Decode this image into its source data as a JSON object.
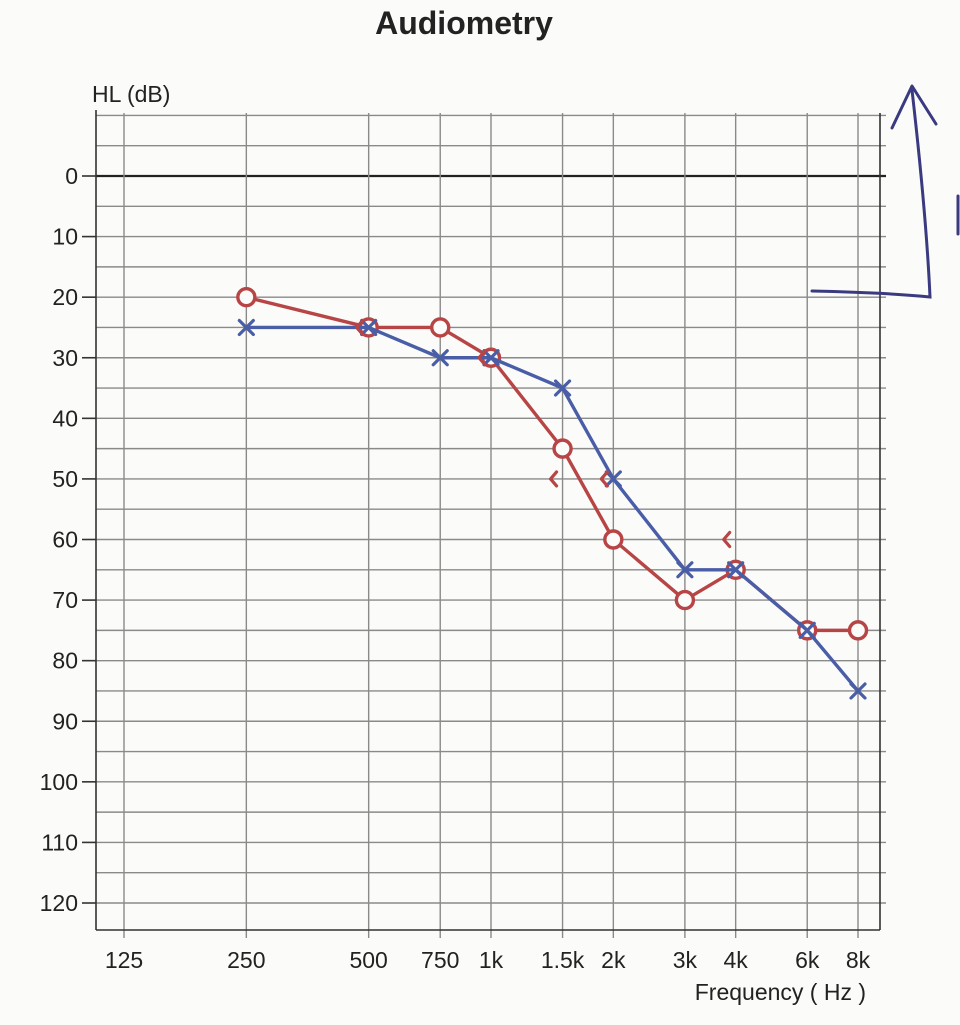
{
  "chart_data": {
    "type": "line",
    "title": "Audiometry",
    "ylabel": "HL (dB)",
    "xlabel": "Frequency ( Hz )",
    "x_scale": "log",
    "y_inverted": true,
    "ylim": [
      -10,
      125
    ],
    "y_ticks": [
      0,
      10,
      20,
      30,
      40,
      50,
      60,
      70,
      80,
      90,
      100,
      110,
      120
    ],
    "x_ticks": [
      {
        "value": 125,
        "label": "125"
      },
      {
        "value": 250,
        "label": "250"
      },
      {
        "value": 500,
        "label": "500"
      },
      {
        "value": 750,
        "label": "750"
      },
      {
        "value": 1000,
        "label": "1k"
      },
      {
        "value": 1500,
        "label": "1.5k"
      },
      {
        "value": 2000,
        "label": "2k"
      },
      {
        "value": 3000,
        "label": "3k"
      },
      {
        "value": 4000,
        "label": "4k"
      },
      {
        "value": 6000,
        "label": "6k"
      },
      {
        "value": 8000,
        "label": "8k"
      }
    ],
    "grid": true,
    "series": [
      {
        "marker": "circle",
        "color": "#b84545",
        "points": [
          {
            "x": 250,
            "y": 20
          },
          {
            "x": 500,
            "y": 25
          },
          {
            "x": 750,
            "y": 25
          },
          {
            "x": 1000,
            "y": 30
          },
          {
            "x": 1500,
            "y": 45
          },
          {
            "x": 2000,
            "y": 60
          },
          {
            "x": 3000,
            "y": 70
          },
          {
            "x": 4000,
            "y": 65
          },
          {
            "x": 6000,
            "y": 75
          },
          {
            "x": 8000,
            "y": 75
          }
        ]
      },
      {
        "marker": "cross",
        "color": "#4a5ea8",
        "points": [
          {
            "x": 250,
            "y": 25
          },
          {
            "x": 500,
            "y": 25
          },
          {
            "x": 750,
            "y": 30
          },
          {
            "x": 1000,
            "y": 30
          },
          {
            "x": 1500,
            "y": 35
          },
          {
            "x": 2000,
            "y": 50
          },
          {
            "x": 3000,
            "y": 65
          },
          {
            "x": 4000,
            "y": 65
          },
          {
            "x": 6000,
            "y": 75
          },
          {
            "x": 8000,
            "y": 85
          }
        ]
      },
      {
        "marker": "bracket-left",
        "color": "#b84545",
        "points": [
          {
            "x": 500,
            "y": 25
          },
          {
            "x": 1000,
            "y": 30
          },
          {
            "x": 1500,
            "y": 50
          },
          {
            "x": 2000,
            "y": 50
          },
          {
            "x": 4000,
            "y": 60
          }
        ]
      }
    ]
  }
}
